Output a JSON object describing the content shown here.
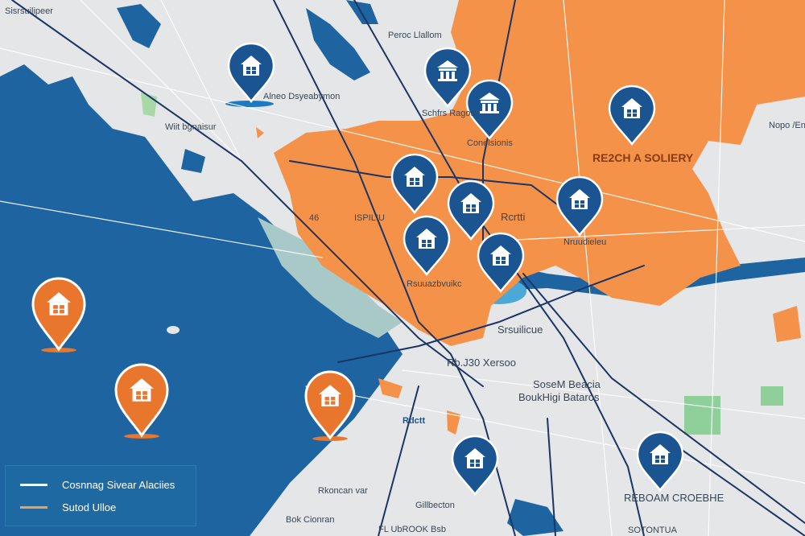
{
  "colors": {
    "land": "#e4e6e8",
    "water": "#1e64a0",
    "region_highlight": "#f4924a",
    "pin_blue": "#1a5592",
    "pin_orange": "#e8762c",
    "park": "#8fcf9a",
    "road": "#1c3566"
  },
  "labels": {
    "top_left": "Sisrsuilipeer",
    "pin_label_1": "Alneo Dsyeabymon",
    "top_center": "Peroc Llallom",
    "pin_label_2": "Schfrs Ragos",
    "pin_label_3": "Conelsionis",
    "left_town": "Wiit bgnaisur",
    "region_name": "RE2CH A SOLIERY",
    "right_top": "Nopo /Enne",
    "north_small": "Rcrtti",
    "district_a": "ISPILIU",
    "district_b": "46",
    "pin_label_4": "Rsuuazbvuikc",
    "pin_label_5": "Nruudieleu",
    "east_town": "Srsuilicue",
    "south_town": "Rb.J30 Xersoo",
    "beach_1": "SoseM Beacia",
    "beach_2": "BoukHigi Bataros",
    "shore_1": "Rkoncan var",
    "shore_2": "Bok Cionran",
    "pin_label_6": "Gillbecton",
    "south_1": "FL UbROOK Bsb",
    "pin_label_7": "REBOAM CROEBHE",
    "south_east": "SOTONTUA",
    "coast": "Rdctt"
  },
  "pins": [
    {
      "icon": "house-icon",
      "color": "blue"
    },
    {
      "icon": "bank-icon",
      "color": "blue"
    },
    {
      "icon": "bank-icon",
      "color": "blue"
    },
    {
      "icon": "house-icon",
      "color": "blue"
    },
    {
      "icon": "house-icon",
      "color": "blue"
    },
    {
      "icon": "house-icon",
      "color": "blue"
    },
    {
      "icon": "house-icon",
      "color": "blue"
    },
    {
      "icon": "house-icon",
      "color": "blue"
    },
    {
      "icon": "house-icon",
      "color": "blue"
    },
    {
      "icon": "house-icon",
      "color": "blue"
    },
    {
      "icon": "house-icon",
      "color": "blue"
    },
    {
      "icon": "house-icon",
      "color": "orange"
    },
    {
      "icon": "house-icon",
      "color": "orange"
    },
    {
      "icon": "house-icon",
      "color": "orange"
    }
  ],
  "legend": {
    "items": [
      {
        "label": "Cosnnag Sivear Alaciies",
        "color": "#ffffff"
      },
      {
        "label": "Sutod Ulloe",
        "color": "#f0a050"
      }
    ]
  }
}
